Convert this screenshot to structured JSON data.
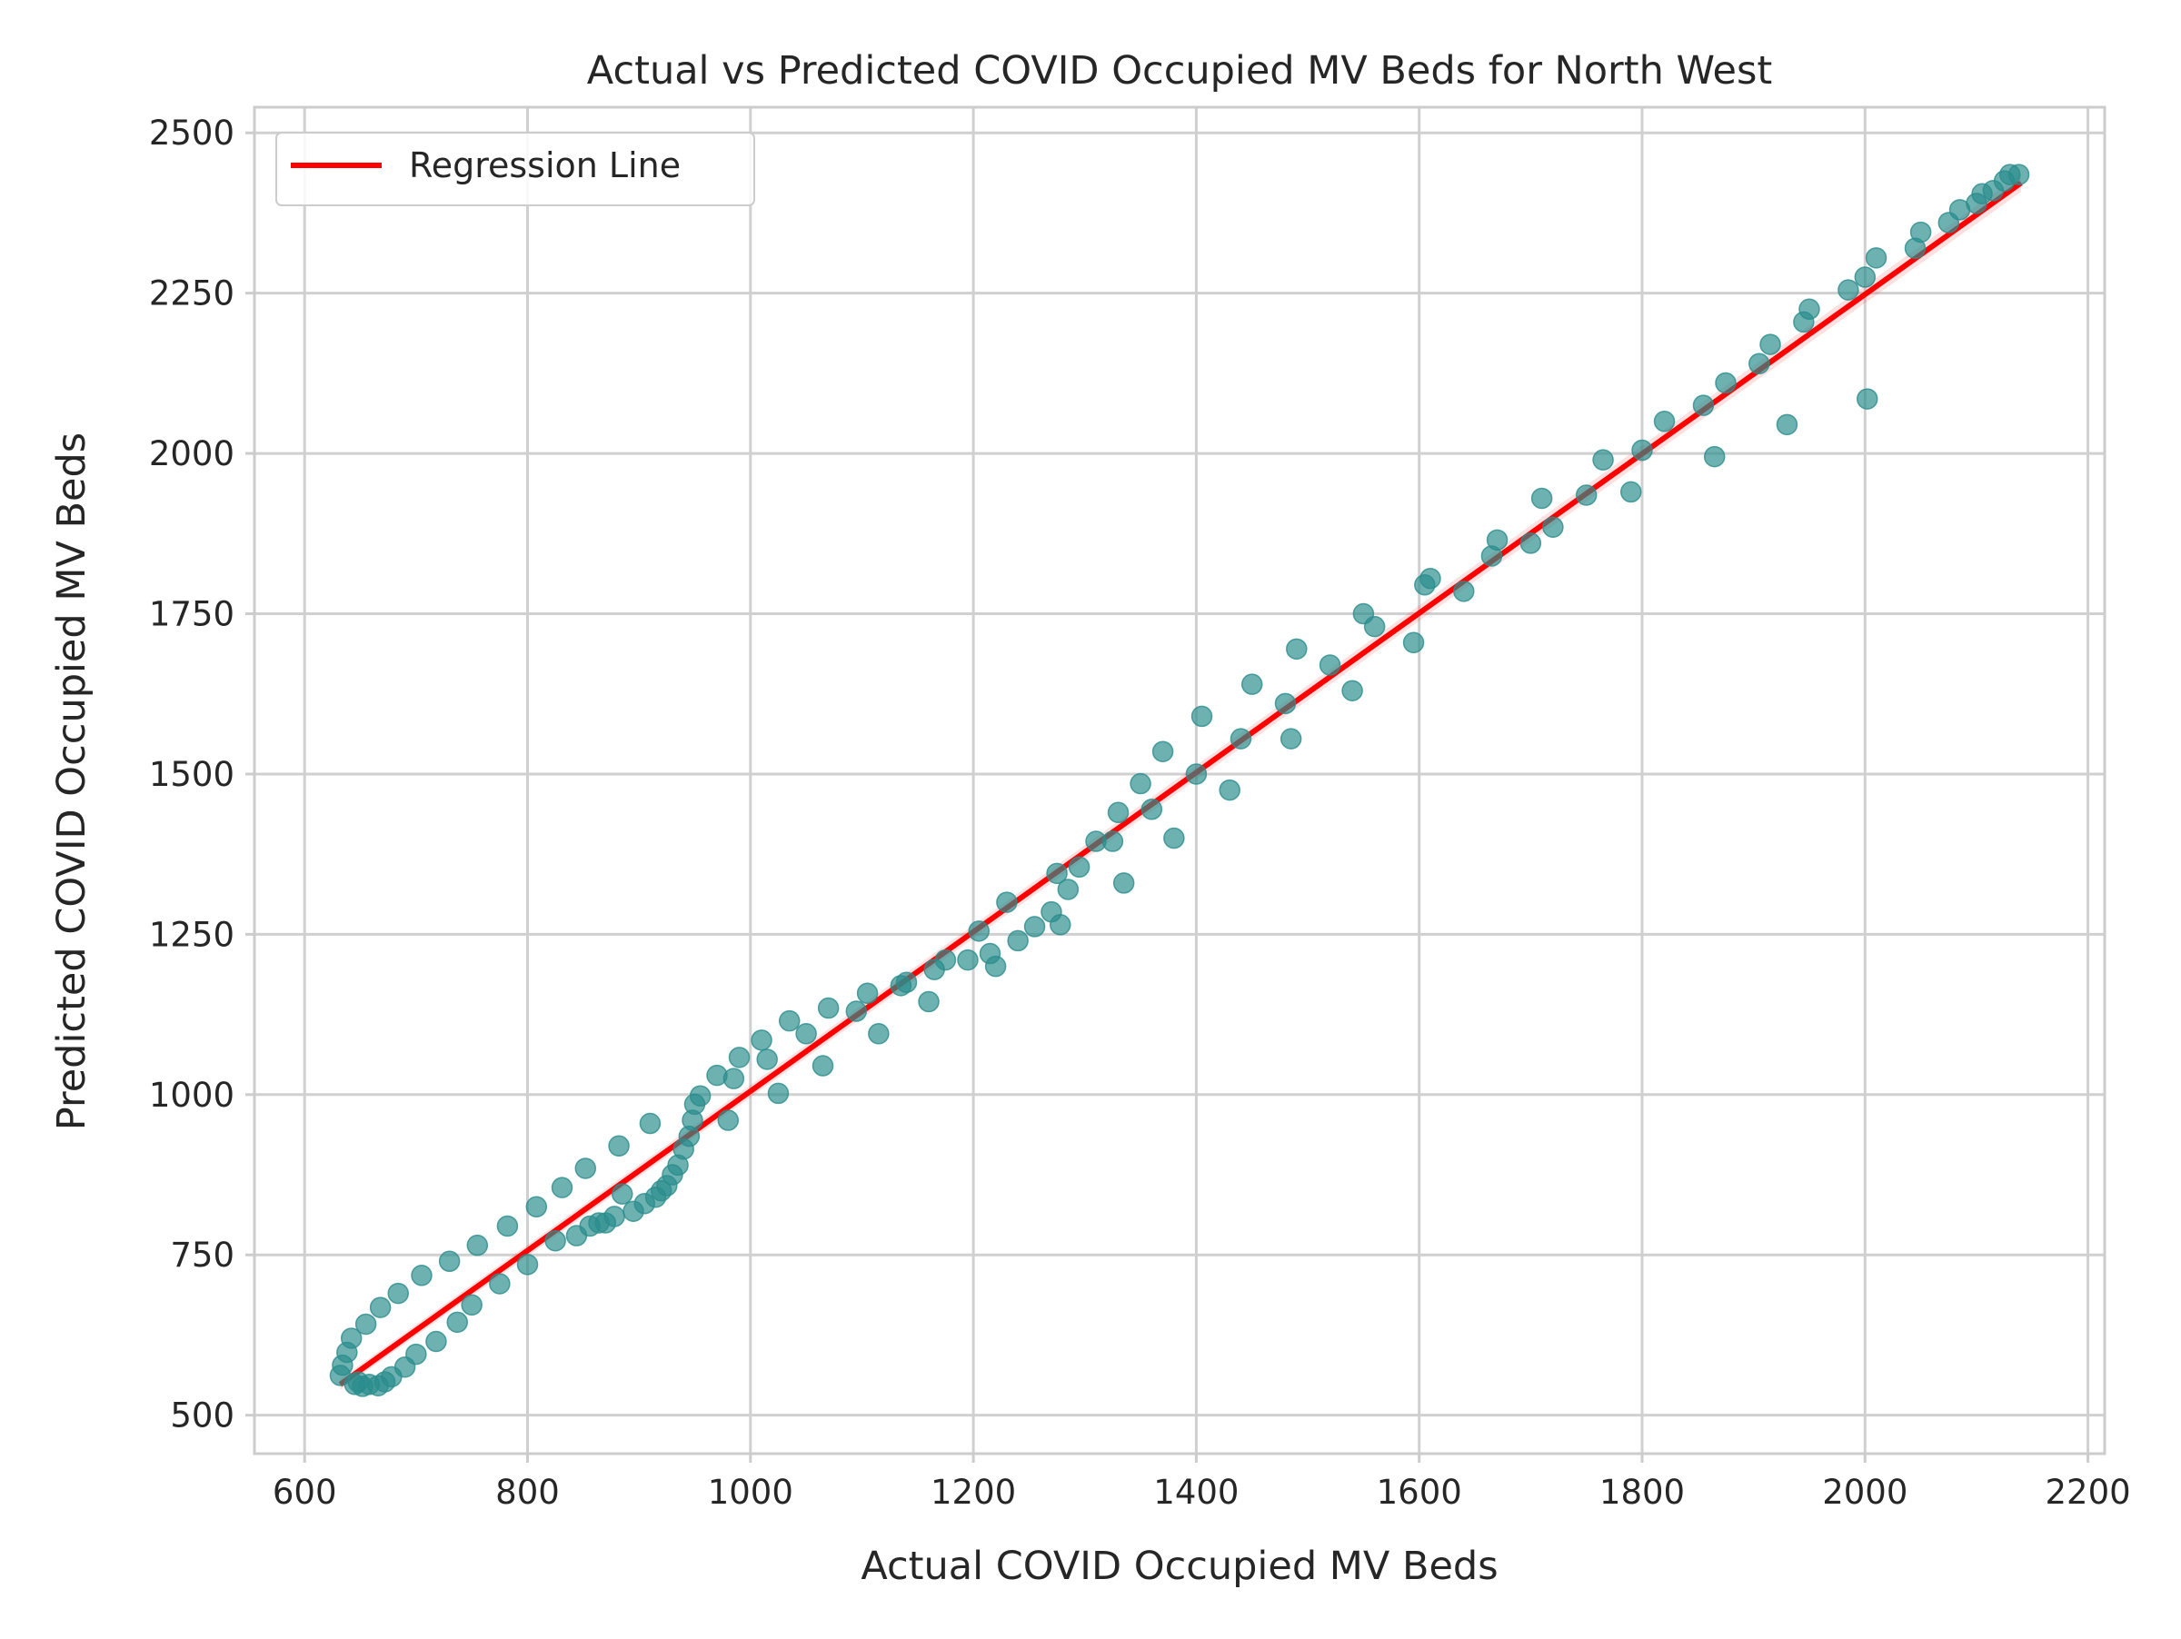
{
  "chart_data": {
    "type": "scatter",
    "title": "Actual vs Predicted COVID Occupied MV Beds for North West",
    "xlabel": "Actual COVID Occupied MV Beds",
    "ylabel": "Predicted COVID Occupied MV Beds",
    "xlim": [
      555,
      2215
    ],
    "ylim": [
      440,
      2540
    ],
    "xticks": [
      600,
      800,
      1000,
      1200,
      1400,
      1600,
      1800,
      2000,
      2200
    ],
    "yticks": [
      500,
      750,
      1000,
      1250,
      1500,
      1750,
      2000,
      2250,
      2500
    ],
    "grid": true,
    "legend": {
      "position": "top-left",
      "entries": [
        "Regression Line"
      ]
    },
    "colors": {
      "points": "#2a8c8c",
      "line": "#ff0000",
      "grid": "#d0d0d0",
      "frame": "#cccccc"
    },
    "series": [
      {
        "type": "scatter",
        "x": [
          632,
          634,
          638,
          642,
          645,
          648,
          652,
          655,
          658,
          666,
          668,
          672,
          678,
          684,
          690,
          700,
          705,
          718,
          730,
          737,
          750,
          755,
          775,
          782,
          800,
          808,
          825,
          831,
          844,
          852,
          856,
          864,
          870,
          878,
          882,
          885,
          895,
          905,
          910,
          915,
          920,
          925,
          930,
          935,
          940,
          945,
          948,
          950,
          955,
          970,
          980,
          985,
          990,
          1010,
          1015,
          1025,
          1035,
          1050,
          1065,
          1070,
          1095,
          1105,
          1115,
          1135,
          1140,
          1160,
          1165,
          1175,
          1195,
          1205,
          1215,
          1220,
          1230,
          1240,
          1255,
          1270,
          1275,
          1278,
          1285,
          1295,
          1310,
          1325,
          1330,
          1335,
          1350,
          1360,
          1370,
          1380,
          1400,
          1405,
          1430,
          1440,
          1450,
          1480,
          1485,
          1490,
          1520,
          1540,
          1550,
          1560,
          1595,
          1605,
          1610,
          1640,
          1665,
          1670,
          1700,
          1710,
          1720,
          1750,
          1765,
          1790,
          1800,
          1820,
          1855,
          1865,
          1875,
          1905,
          1915,
          1930,
          1945,
          1950,
          1985,
          2000,
          2002,
          2010,
          2045,
          2050,
          2075,
          2085,
          2100,
          2105,
          2115,
          2125,
          2130,
          2138
        ],
        "y": [
          562,
          578,
          598,
          620,
          548,
          552,
          545,
          642,
          548,
          546,
          668,
          552,
          560,
          690,
          575,
          595,
          718,
          615,
          740,
          645,
          672,
          765,
          705,
          795,
          735,
          825,
          772,
          855,
          780,
          885,
          795,
          800,
          800,
          810,
          920,
          845,
          818,
          830,
          955,
          840,
          850,
          858,
          875,
          890,
          915,
          935,
          960,
          985,
          998,
          1030,
          960,
          1025,
          1058,
          1085,
          1055,
          1002,
          1115,
          1095,
          1045,
          1135,
          1130,
          1158,
          1095,
          1170,
          1175,
          1145,
          1195,
          1210,
          1210,
          1255,
          1220,
          1200,
          1300,
          1240,
          1262,
          1285,
          1345,
          1265,
          1320,
          1355,
          1395,
          1395,
          1440,
          1330,
          1485,
          1445,
          1535,
          1400,
          1500,
          1590,
          1475,
          1555,
          1640,
          1610,
          1555,
          1695,
          1670,
          1630,
          1750,
          1730,
          1705,
          1795,
          1805,
          1785,
          1840,
          1865,
          1860,
          1930,
          1885,
          1935,
          1990,
          1940,
          2005,
          2050,
          2075,
          1995,
          2110,
          2140,
          2170,
          2045,
          2205,
          2225,
          2255,
          2275,
          2085,
          2305,
          2320,
          2345,
          2360,
          2380,
          2390,
          2405,
          2410,
          2425,
          2435,
          2435
        ]
      },
      {
        "type": "line",
        "name": "Regression Line",
        "x": [
          632,
          2140
        ],
        "y": [
          548,
          2422
        ]
      }
    ]
  }
}
